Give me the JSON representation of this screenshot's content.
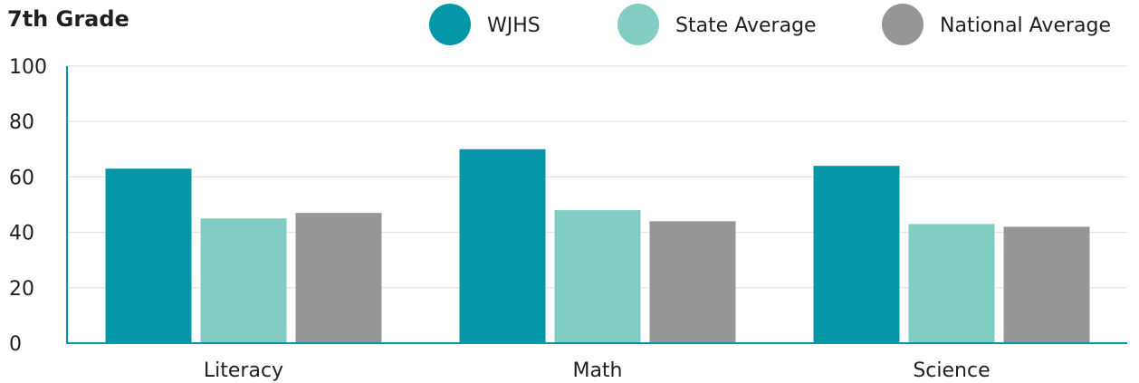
{
  "chart_data": {
    "type": "bar",
    "title": "7th Grade",
    "xlabel": "",
    "ylabel": "",
    "ylim": [
      0,
      100
    ],
    "yticks": [
      0,
      20,
      40,
      60,
      80,
      100
    ],
    "grid": true,
    "legend_position": "top-right",
    "categories": [
      "Literacy",
      "Math",
      "Science"
    ],
    "series": [
      {
        "name": "WJHS",
        "color": "#0397a7",
        "values": [
          63,
          70,
          64
        ]
      },
      {
        "name": "State Average",
        "color": "#81cdc4",
        "values": [
          45,
          48,
          43
        ]
      },
      {
        "name": "National Average",
        "color": "#959697",
        "values": [
          47,
          44,
          42
        ]
      }
    ],
    "axis_color": "#0397a7"
  }
}
